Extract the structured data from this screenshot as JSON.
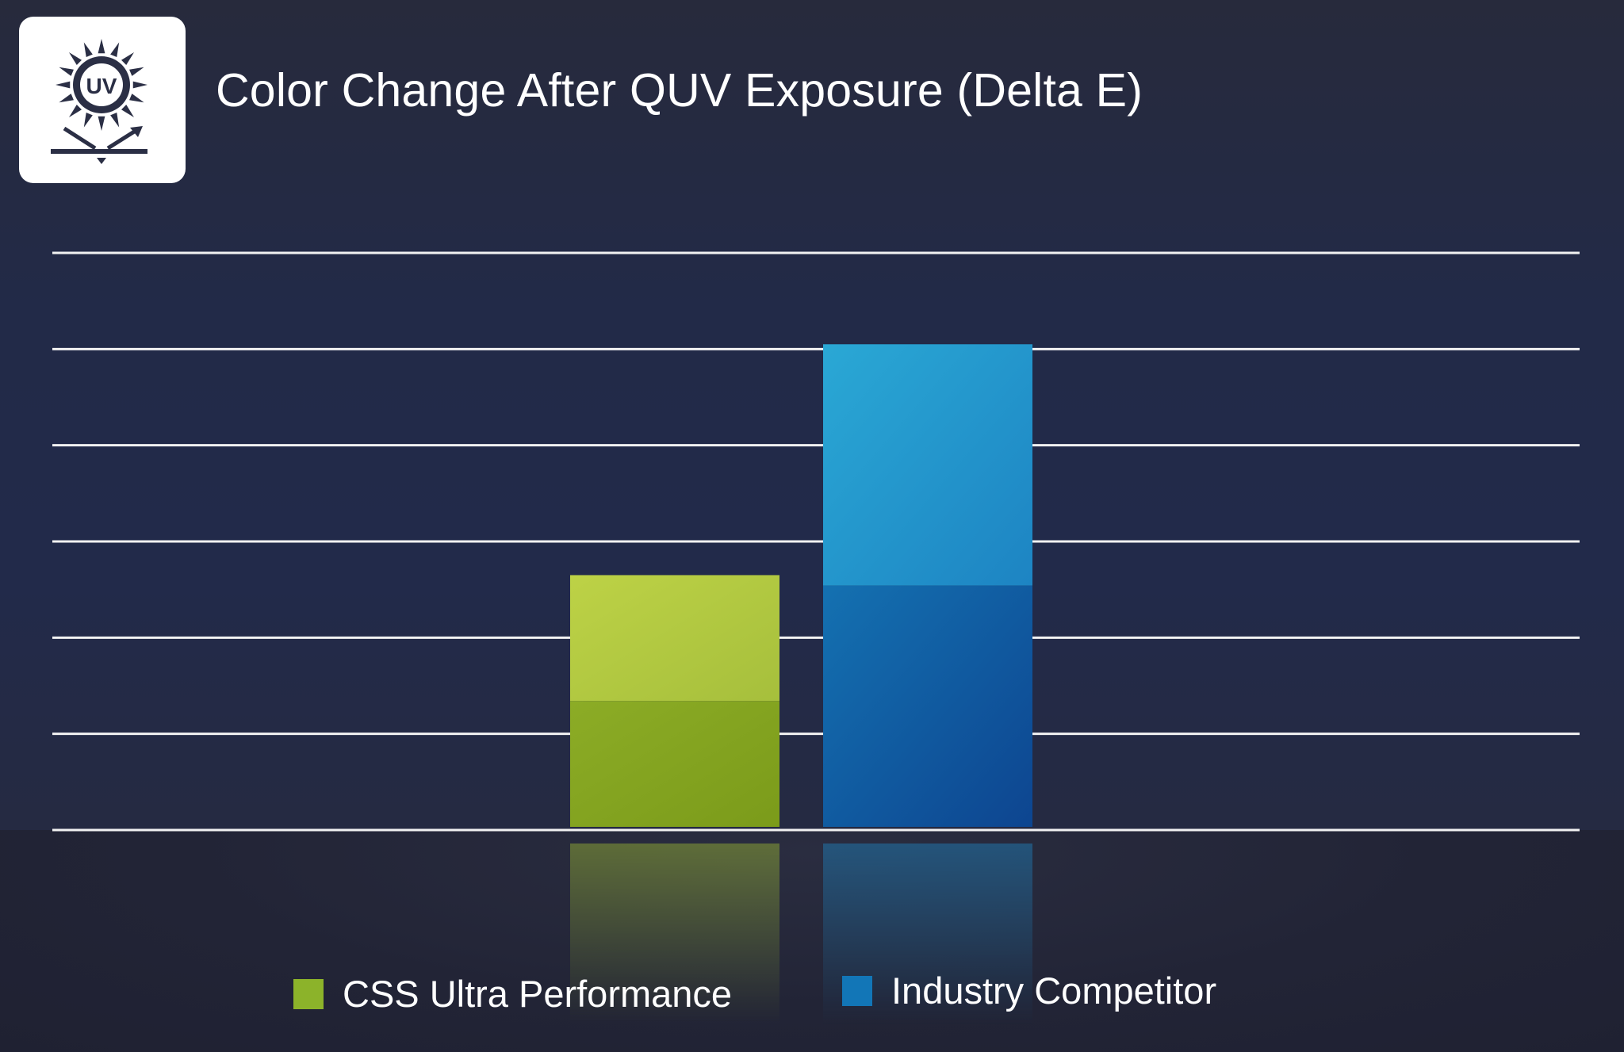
{
  "header": {
    "logo_icon": "uv-sun-icon",
    "logo_text": "UV",
    "title": "Color Change After QUV Exposure (Delta E)"
  },
  "chart_data": {
    "type": "bar",
    "title": "Color Change After QUV Exposure (Delta E)",
    "xlabel": "",
    "ylabel": "",
    "categories": [
      "CSS Ultra Performance",
      "Industry Competitor"
    ],
    "values": [
      2.65,
      5.05
    ],
    "ylim": [
      0,
      6
    ],
    "grid": true,
    "gridline_count": 7,
    "tick_labels_shown": false,
    "legend": {
      "placement": "bottom-center",
      "entries": [
        {
          "label": "CSS Ultra Performance",
          "color": "#8cb32a"
        },
        {
          "label": "Industry Competitor",
          "color": "#1276b7"
        }
      ]
    },
    "colors": {
      "css_top": "#bcd045",
      "css_bottom": "#82a21c",
      "comp_top": "#29a5d3",
      "comp_bottom": "#0e4a92"
    }
  }
}
